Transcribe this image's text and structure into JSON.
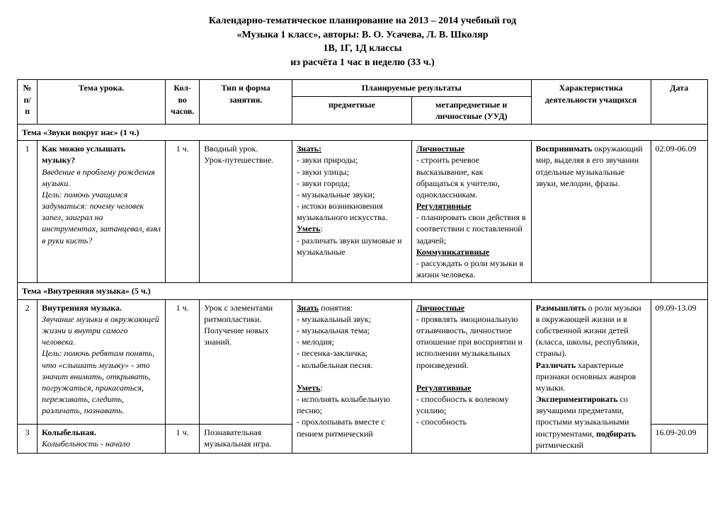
{
  "title_lines": [
    "Календарно-тематическое планирование на 2013 – 2014 учебный год",
    "«Музыка 1 класс», авторы: В. О. Усачева, Л. В. Школяр",
    "1В, 1Г, 1Д классы",
    "из расчёта 1 час в неделю  (33 ч.)"
  ],
  "headers": {
    "num": "№ п/п",
    "topic": "Тема урока.",
    "hours": "Кол-во часов.",
    "type": "Тип и форма занятия.",
    "results": "Планируемые  результаты",
    "subj": "предметные",
    "meta": "метапредметные  и  личностные (УУД)",
    "activity": "Характеристика деятельности учащихся",
    "date": "Дата"
  },
  "section1": "Тема «Звуки вокруг нас» (1 ч.)",
  "row1": {
    "num": "1",
    "topic_bold": "Как можно услышать музыку?",
    "topic_italic": "Введение в проблему рождения музыки.\nЦель: помочь учащимся задуматься: почему человек запел, заиграл на инструментах, затанцевал, взял в руки кисть?",
    "hours": "1 ч.",
    "type": "Вводный урок.\nУрок-путешествие.",
    "subj_know_label": "Знать:",
    "subj_know": "- звуки природы;\n- звуки улицы;\n- звуки города;\n- музыкальные звуки;\n- истоки возникновения музыкального искусства.",
    "subj_can_label": "Уметь",
    "subj_can": ":\n- различать звуки шумовые и музыкальные",
    "meta_l_label": "Личностные",
    "meta_l": "- строить речевое высказывание, как обращаться к учителю, одноклассникам.",
    "meta_r_label": "Регулятивные",
    "meta_r": "- планировать свои действия в соответствии с поставленной задачей;",
    "meta_k_label": "Коммуникативные",
    "meta_k": "- рассуждать о роли музыки в жизни человека.",
    "activity_bold": "Воспринимать",
    "activity_rest": " окружающий мир, выделяя в его звучании отдельные музыкальные звуки, мелодии, фразы.",
    "date": "02.09-06.09"
  },
  "section2": "Тема «Внутренняя музыка» (5 ч.)",
  "row2": {
    "num": "2",
    "topic_bold": "Внутренняя музыка.",
    "topic_italic": "Звучание музыки в окружающей жизни и внутри самого человека.\nЦель: помочь ребятам понять, что «слышать музыку» - это значит внимать, открывать, погружаться, прикасаться, переживать, следить, различать, познавать.",
    "hours": "1 ч.",
    "type": "Урок с элементами ритмопластики. Получение новых знаний.",
    "subj_know_label": "Знать",
    "subj_know": " понятия:\n - музыкальный звук;\n - музыкальная тема;\n- мелодия;\n- песенка-закличка;\n- колыбельная песня.",
    "subj_can_label": "Уметь",
    "subj_can": ":\n- исполнять колыбельную песню;\n- прохлопывать вместе с пением ритмический",
    "meta_l_label": "Личностные",
    "meta_l": "- проявлять эмоциональную отзывчивость, личностное отношение при восприятии и исполнении музыкальных произведений.",
    "meta_r_label": "Регулятивные",
    "meta_r": "- способность к волевому усилию;\n- способность",
    "activity_1b": "Размышлять",
    "activity_1": " о роли музыки в окружающей жизни и в собственной жизни детей (класса, школы, республики, страны).",
    "activity_2b": "Различать",
    "activity_2": " характерные признаки основных жанров музыки.",
    "activity_3b": "Экспериментировать",
    "activity_3": " со звучащими предметами, простыми музыкальными инструментами, ",
    "activity_4b": "подбирать",
    "activity_4": " ритмический",
    "date": "09.09-13.09"
  },
  "row3": {
    "num": "3",
    "topic_bold": "Колыбельная.",
    "topic_italic": "Колыбельность - начало",
    "hours": "1 ч.",
    "type": "Познавательная музыкальная игра.",
    "date": "16.09-20.09"
  }
}
